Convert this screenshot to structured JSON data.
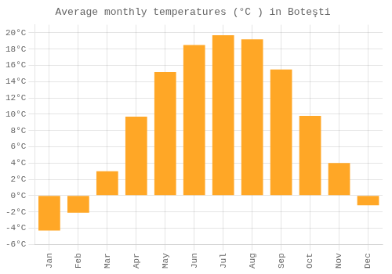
{
  "chart_data": {
    "type": "bar",
    "title": "Average monthly temperatures (°C ) in Boteşti",
    "categories": [
      "Jan",
      "Feb",
      "Mar",
      "Apr",
      "May",
      "Jun",
      "Jul",
      "Aug",
      "Sep",
      "Oct",
      "Nov",
      "Dec"
    ],
    "values": [
      -4.3,
      -2.1,
      3.0,
      9.7,
      15.2,
      18.5,
      19.7,
      19.2,
      15.5,
      9.8,
      4.0,
      -1.2
    ],
    "color": "#FFA726",
    "ylim": [
      -6,
      21
    ],
    "yticks": [
      {
        "value": -6,
        "label": "-6°C"
      },
      {
        "value": -4,
        "label": "-4°C"
      },
      {
        "value": -2,
        "label": "-2°C"
      },
      {
        "value": 0,
        "label": "0°C"
      },
      {
        "value": 2,
        "label": "2°C"
      },
      {
        "value": 4,
        "label": "4°C"
      },
      {
        "value": 6,
        "label": "6°C"
      },
      {
        "value": 8,
        "label": "8°C"
      },
      {
        "value": 10,
        "label": "10°C"
      },
      {
        "value": 12,
        "label": "12°C"
      },
      {
        "value": 14,
        "label": "14°C"
      },
      {
        "value": 16,
        "label": "16°C"
      },
      {
        "value": 18,
        "label": "18°C"
      },
      {
        "value": 20,
        "label": "20°C"
      }
    ],
    "grid": true
  }
}
